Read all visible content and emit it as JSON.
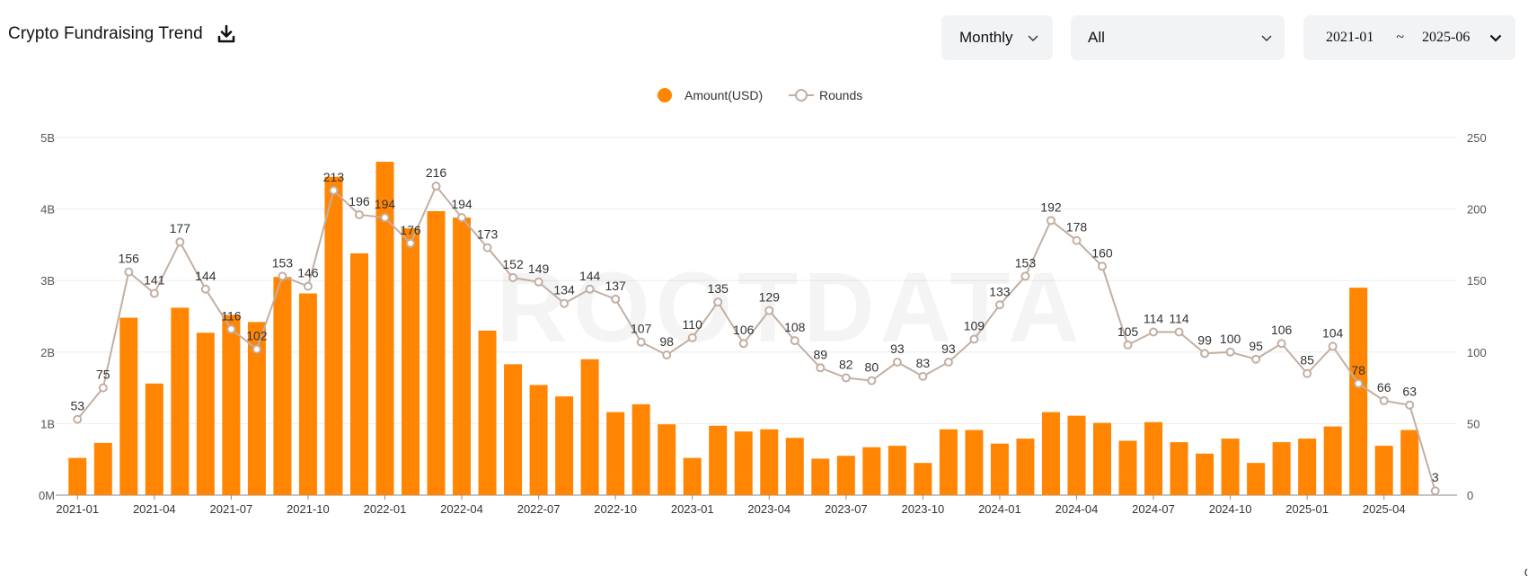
{
  "header": {
    "title": "Crypto Fundraising Trend",
    "download_icon": "download-icon",
    "period": "Monthly",
    "category": "All",
    "date_start": "2021-01",
    "date_sep": "~",
    "date_end": "2025-06"
  },
  "colors": {
    "bar": "#ff8502",
    "line": "#c2afa3",
    "grid": "#eeeeee",
    "axis_text": "#555555"
  },
  "chart_data": {
    "type": "bar",
    "title": "Crypto Fundraising Trend",
    "legend": {
      "position": "top-center",
      "items": [
        "Amount(USD)",
        "Rounds"
      ]
    },
    "categories": [
      "2021-01",
      "2021-02",
      "2021-03",
      "2021-04",
      "2021-05",
      "2021-06",
      "2021-07",
      "2021-08",
      "2021-09",
      "2021-10",
      "2021-11",
      "2021-12",
      "2022-01",
      "2022-02",
      "2022-03",
      "2022-04",
      "2022-05",
      "2022-06",
      "2022-07",
      "2022-08",
      "2022-09",
      "2022-10",
      "2022-11",
      "2022-12",
      "2023-01",
      "2023-02",
      "2023-03",
      "2023-04",
      "2023-05",
      "2023-06",
      "2023-07",
      "2023-08",
      "2023-09",
      "2023-10",
      "2023-11",
      "2023-12",
      "2024-01",
      "2024-02",
      "2024-03",
      "2024-04",
      "2024-05",
      "2024-06",
      "2024-07",
      "2024-08",
      "2024-09",
      "2024-10",
      "2024-11",
      "2024-12",
      "2025-01",
      "2025-02",
      "2025-03",
      "2025-04",
      "2025-05",
      "2025-06"
    ],
    "x_tick_labels": [
      "2021-01",
      "2021-04",
      "2021-07",
      "2021-10",
      "2022-01",
      "2022-04",
      "2022-07",
      "2022-10",
      "2023-01",
      "2023-04",
      "2023-07",
      "2023-10",
      "2024-01",
      "2024-04",
      "2024-07",
      "2024-10",
      "2025-01",
      "2025-04"
    ],
    "series": [
      {
        "name": "Amount(USD)",
        "type": "bar",
        "axis": "left",
        "values": [
          0.52,
          0.73,
          2.48,
          1.56,
          2.62,
          2.27,
          2.52,
          2.42,
          3.05,
          2.82,
          4.45,
          3.38,
          4.66,
          3.73,
          3.97,
          3.88,
          2.3,
          1.83,
          1.54,
          1.38,
          1.9,
          1.16,
          1.27,
          0.99,
          0.52,
          0.97,
          0.89,
          0.92,
          0.8,
          0.51,
          0.55,
          0.67,
          0.69,
          0.45,
          0.92,
          0.91,
          0.72,
          0.79,
          1.16,
          1.11,
          1.01,
          0.76,
          1.02,
          0.74,
          0.58,
          0.79,
          0.45,
          0.74,
          0.79,
          0.96,
          2.9,
          0.69,
          0.91,
          0
        ]
      },
      {
        "name": "Rounds",
        "type": "line",
        "axis": "right",
        "values": [
          53,
          75,
          156,
          141,
          177,
          144,
          116,
          102,
          153,
          146,
          213,
          196,
          194,
          176,
          216,
          194,
          173,
          152,
          149,
          134,
          144,
          137,
          107,
          98,
          110,
          135,
          106,
          129,
          108,
          89,
          82,
          80,
          93,
          83,
          93,
          109,
          133,
          153,
          192,
          178,
          160,
          105,
          114,
          114,
          99,
          100,
          95,
          106,
          85,
          104,
          78,
          66,
          63,
          3
        ]
      }
    ],
    "y_left": {
      "label": "",
      "range": [
        0,
        5
      ],
      "unit": "B",
      "tick_labels": [
        "0M",
        "1B",
        "2B",
        "3B",
        "4B",
        "5B"
      ]
    },
    "y_right": {
      "label": "",
      "range": [
        0,
        250
      ],
      "tick_labels": [
        "0",
        "50",
        "100",
        "150",
        "200",
        "250"
      ]
    },
    "grid": true,
    "watermark": "ROOTDATA"
  }
}
